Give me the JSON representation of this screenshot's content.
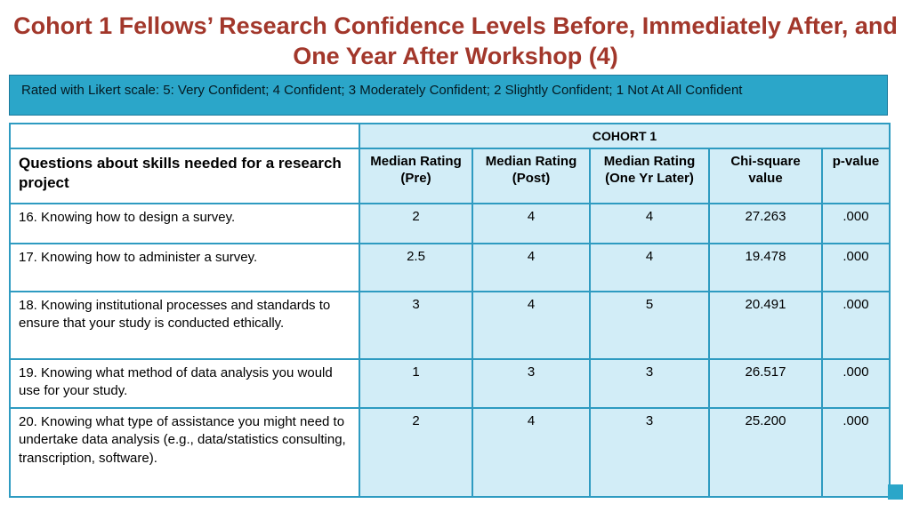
{
  "title": {
    "line1": "Cohort 1 Fellows’ Research Confidence Levels Before, Immediately After, and",
    "line2": "One Year After Workshop (4)"
  },
  "banner": {
    "text": "Rated with Likert scale: 5: Very Confident; 4 Confident; 3 Moderately Confident; 2 Slightly Confident; 1 Not At All Confident"
  },
  "table": {
    "group_header": "COHORT 1",
    "question_header": "Questions about skills needed for a research project",
    "columns": [
      {
        "label": "Median Rating",
        "sub": "(Pre)"
      },
      {
        "label": "Median Rating",
        "sub": "(Post)"
      },
      {
        "label": "Median Rating",
        "sub": "(One Yr Later)"
      },
      {
        "label": "Chi-square",
        "sub": "value"
      },
      {
        "label": "p-value",
        "sub": ""
      }
    ],
    "rows": [
      [
        "16. Knowing how to design a survey.",
        "2",
        "4",
        "4",
        "27.263",
        ".000"
      ],
      [
        "17. Knowing how to administer a survey.",
        "2.5",
        "4",
        "4",
        "19.478",
        ".000"
      ],
      [
        "18. Knowing institutional processes and standards to ensure that your study is conducted ethically.",
        "3",
        "4",
        "5",
        "20.491",
        ".000"
      ],
      [
        "19. Knowing what method of data analysis you would use for your study.",
        "1",
        "3",
        "3",
        "26.517",
        ".000"
      ],
      [
        "20. Knowing what type of assistance you might need to undertake data analysis (e.g., data/statistics consulting, transcription, software).",
        "2",
        "4",
        "3",
        "25.200",
        ".000"
      ]
    ]
  },
  "colors": {
    "title_red": "#A2372B",
    "teal": "#2BA6C9",
    "teal_border": "#2E9BC1",
    "light_cyan": "#D2EDF7"
  }
}
